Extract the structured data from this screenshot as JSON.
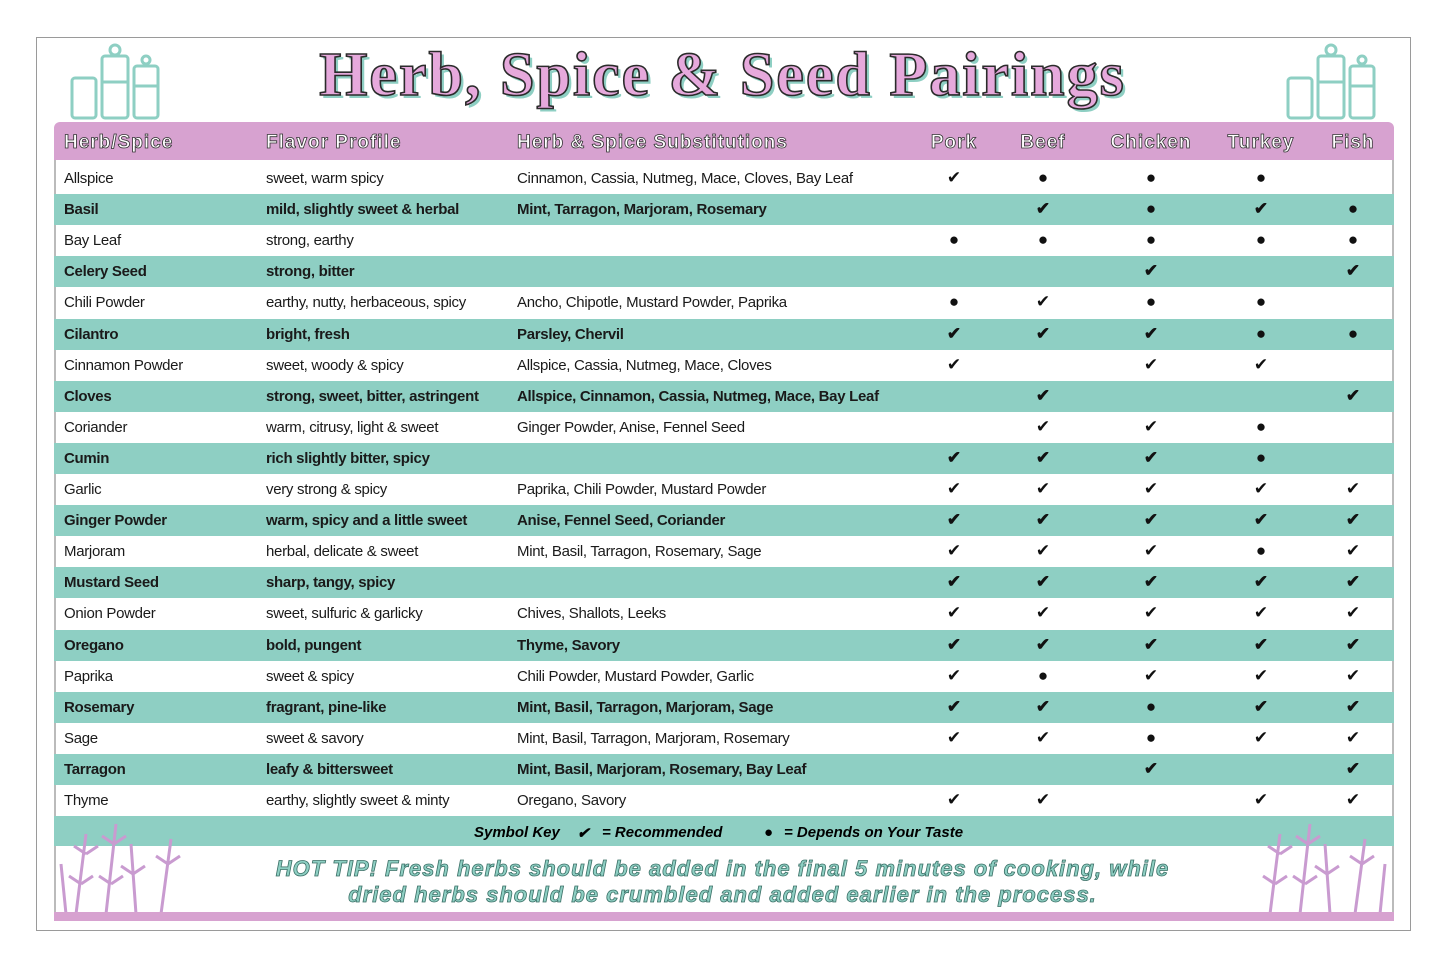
{
  "header": {
    "title": "Herb, Spice & Seed Pairings"
  },
  "table": {
    "columns": [
      "Herb/Spice",
      "Flavor Profile",
      "Herb & Spice Substitutions",
      "Pork",
      "Beef",
      "Chicken",
      "Turkey",
      "Fish"
    ],
    "rows": [
      [
        "Allspice",
        "sweet, warm spicy",
        "Cinnamon, Cassia, Nutmeg, Mace, Cloves, Bay Leaf",
        "✔",
        "●",
        "●",
        "●",
        null
      ],
      [
        "Basil",
        "mild, slightly sweet & herbal",
        "Mint, Tarragon, Marjoram, Rosemary",
        null,
        "✔",
        "●",
        "✔",
        "●"
      ],
      [
        "Bay Leaf",
        "strong, earthy",
        null,
        "●",
        "●",
        "●",
        "●",
        "●"
      ],
      [
        "Celery Seed",
        "strong, bitter",
        null,
        null,
        null,
        "✔",
        null,
        "✔"
      ],
      [
        "Chili Powder",
        "earthy, nutty, herbaceous, spicy",
        "Ancho, Chipotle, Mustard Powder, Paprika",
        "●",
        "✔",
        "●",
        "●",
        null
      ],
      [
        "Cilantro",
        "bright, fresh",
        "Parsley, Chervil",
        "✔",
        "✔",
        "✔",
        "●",
        "●"
      ],
      [
        "Cinnamon Powder",
        "sweet, woody & spicy",
        "Allspice, Cassia, Nutmeg, Mace, Cloves",
        "✔",
        null,
        "✔",
        "✔",
        null
      ],
      [
        "Cloves",
        "strong, sweet, bitter, astringent",
        "Allspice, Cinnamon, Cassia, Nutmeg, Mace, Bay Leaf",
        null,
        "✔",
        null,
        null,
        "✔"
      ],
      [
        "Coriander",
        "warm, citrusy, light & sweet",
        "Ginger Powder, Anise, Fennel Seed",
        null,
        "✔",
        "✔",
        "●",
        null
      ],
      [
        "Cumin",
        "rich slightly bitter, spicy",
        null,
        "✔",
        "✔",
        "✔",
        "●",
        null
      ],
      [
        "Garlic",
        "very strong & spicy",
        "Paprika, Chili Powder, Mustard Powder",
        "✔",
        "✔",
        "✔",
        "✔",
        "✔"
      ],
      [
        "Ginger Powder",
        "warm, spicy and a little sweet",
        "Anise, Fennel Seed, Coriander",
        "✔",
        "✔",
        "✔",
        "✔",
        "✔"
      ],
      [
        "Marjoram",
        "herbal, delicate & sweet",
        "Mint, Basil, Tarragon, Rosemary, Sage",
        "✔",
        "✔",
        "✔",
        "●",
        "✔"
      ],
      [
        "Mustard Seed",
        "sharp, tangy, spicy",
        null,
        "✔",
        "✔",
        "✔",
        "✔",
        "✔"
      ],
      [
        "Onion Powder",
        "sweet, sulfuric & garlicky",
        "Chives, Shallots, Leeks",
        "✔",
        "✔",
        "✔",
        "✔",
        "✔"
      ],
      [
        "Oregano",
        "bold, pungent",
        "Thyme, Savory",
        "✔",
        "✔",
        "✔",
        "✔",
        "✔"
      ],
      [
        "Paprika",
        "sweet & spicy",
        "Chili Powder, Mustard Powder, Garlic",
        "✔",
        "●",
        "✔",
        "✔",
        "✔"
      ],
      [
        "Rosemary",
        "fragrant, pine-like",
        "Mint, Basil, Tarragon, Marjoram, Sage",
        "✔",
        "✔",
        "●",
        "✔",
        "✔"
      ],
      [
        "Sage",
        "sweet & savory",
        "Mint, Basil, Tarragon, Marjoram, Rosemary",
        "✔",
        "✔",
        "●",
        "✔",
        "✔"
      ],
      [
        "Tarragon",
        "leafy & bittersweet",
        "Mint, Basil, Marjoram, Rosemary, Bay Leaf",
        null,
        null,
        "✔",
        null,
        "✔"
      ],
      [
        "Thyme",
        "earthy, slightly sweet & minty",
        "Oregano, Savory",
        "✔",
        "✔",
        null,
        "✔",
        "✔"
      ]
    ]
  },
  "key": {
    "label": "Symbol Key",
    "items": [
      {
        "symbol": "✔",
        "text": "= Recommended"
      },
      {
        "symbol": "●",
        "text": "= Depends on Your Taste"
      }
    ]
  },
  "tip": [
    "HOT TIP! Fresh herbs should be added in the final 5 minutes of cooking, while",
    "dried herbs should be crumbled and added earlier in the process."
  ]
}
